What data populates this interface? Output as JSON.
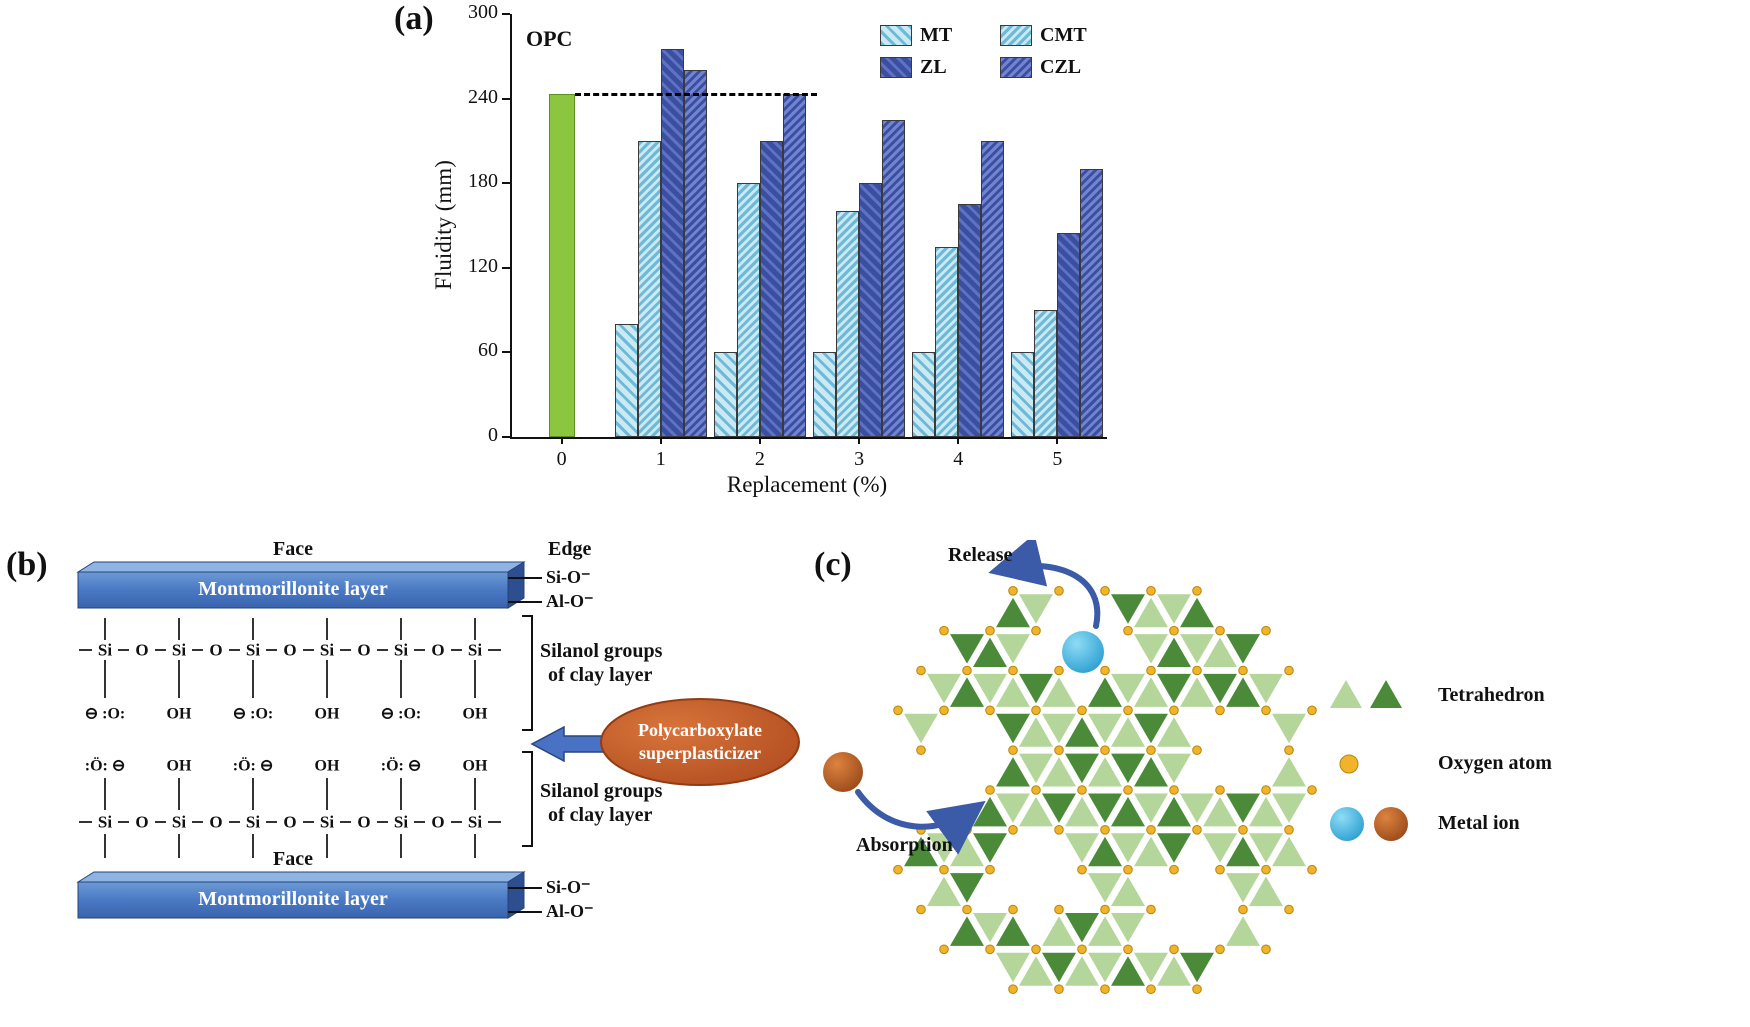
{
  "panels": {
    "a": {
      "tag": "(a)"
    },
    "b": {
      "tag": "(b)"
    },
    "c": {
      "tag": "(c)"
    }
  },
  "chart_data": {
    "type": "bar",
    "title": "",
    "xlabel": "Replacement (%)",
    "ylabel": "Fluidity (mm)",
    "ylim": [
      0,
      300
    ],
    "yticks": [
      0,
      60,
      120,
      180,
      240,
      300
    ],
    "categories": [
      "0",
      "1",
      "2",
      "3",
      "4",
      "5"
    ],
    "annotation": "OPC",
    "legend_position": "top-right",
    "reference_bar": {
      "name": "OPC",
      "category": "0",
      "value": 243,
      "color": "#8cc63e",
      "border": "#5f8f23"
    },
    "dashed_guide": {
      "y": 243,
      "from_category_index": 0,
      "to_category_index": 2
    },
    "series": [
      {
        "name": "MT",
        "values": [
          null,
          80,
          60,
          60,
          60,
          60
        ],
        "base": "#c9e9f4",
        "stripe": "#6fb9d6",
        "angle": 45,
        "gap": 8,
        "width": 3
      },
      {
        "name": "CMT",
        "values": [
          null,
          210,
          180,
          160,
          135,
          90
        ],
        "base": "#c9e9f4",
        "stripe": "#6fb9d6",
        "angle": 135,
        "gap": 6,
        "width": 3
      },
      {
        "name": "ZL",
        "values": [
          null,
          275,
          210,
          180,
          165,
          145
        ],
        "base": "#3b4fa1",
        "stripe": "#5f71c2",
        "angle": 45,
        "gap": 8,
        "width": 3
      },
      {
        "name": "CZL",
        "values": [
          null,
          260,
          243,
          225,
          210,
          190
        ],
        "base": "#3b4fa1",
        "stripe": "#7283cf",
        "angle": 135,
        "gap": 6,
        "width": 3
      }
    ]
  },
  "panel_b": {
    "face_top": "Face",
    "face_bottom": "Face",
    "edge_label": "Edge",
    "layer_top": "Montmorillonite layer",
    "layer_bottom": "Montmorillonite layer",
    "edge_top": [
      "Si-O⁻",
      "Al-O⁻"
    ],
    "edge_bottom": [
      "Si-O⁻",
      "Al-O⁻"
    ],
    "silanol_top_line1": "Silanol groups",
    "silanol_top_line2": "of clay layer",
    "silanol_bottom_line1": "Silanol groups",
    "silanol_bottom_line2": "of clay layer",
    "ellipse_line1": "Polycarboxylate",
    "ellipse_line2": "superplasticizer",
    "chain_atoms": [
      "Si",
      "O",
      "Si",
      "O",
      "Si",
      "O",
      "Si",
      "O",
      "Si",
      "O",
      "Si"
    ],
    "upper_groups": [
      "⊖ :O:",
      "OH",
      "⊖ :O:",
      "OH",
      "⊖ :O:",
      "OH"
    ],
    "lower_groups": [
      ":Ö: ⊖",
      "OH",
      ":Ö: ⊖",
      "OH",
      ":Ö: ⊖",
      "OH"
    ],
    "colors": {
      "layer_front": "#4a79c4",
      "layer_top": "#8fb4e4",
      "layer_side": "#2e4f8f",
      "ellipse": "#c2571f",
      "arrow": "#4a72c4"
    }
  },
  "panel_c": {
    "release": "Release",
    "absorption": "Absorption",
    "legend": [
      {
        "label": "Tetrahedron"
      },
      {
        "label": "Oxygen atom"
      },
      {
        "label": "Metal ion"
      }
    ],
    "colors": {
      "tri_light": "#b5d69b",
      "tri_dark": "#4a8a38",
      "oxygen": "#f0b32b",
      "oxygen_edge": "#b8860b",
      "ion_blue": "#29abe2",
      "ion_brown": "#b4571e",
      "arrow": "#3b5ba8"
    }
  }
}
